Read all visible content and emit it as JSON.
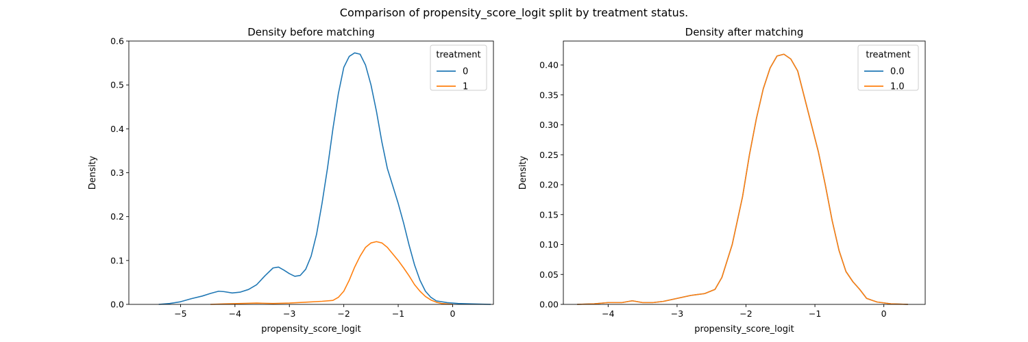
{
  "figure": {
    "suptitle": "Comparison of propensity_score_logit split by treatment status."
  },
  "colors": {
    "series0": "#1f77b4",
    "series1": "#ff7f0e"
  },
  "chart_data": [
    {
      "type": "line",
      "title": "Density before matching",
      "xlabel": "propensity_score_logit",
      "ylabel": "Density",
      "xlim": [
        -5.95,
        0.75
      ],
      "ylim": [
        0,
        0.6
      ],
      "xticks": [
        -5,
        -4,
        -3,
        -2,
        -1,
        0
      ],
      "xtick_labels": [
        "−5",
        "−4",
        "−3",
        "−2",
        "−1",
        "0"
      ],
      "yticks": [
        0.0,
        0.1,
        0.2,
        0.3,
        0.4,
        0.5,
        0.6
      ],
      "ytick_labels": [
        "0.0",
        "0.1",
        "0.2",
        "0.3",
        "0.4",
        "0.5",
        "0.6"
      ],
      "grid": false,
      "legend": {
        "title": "treatment",
        "position": "top-right"
      },
      "series": [
        {
          "name": "0",
          "points": [
            [
              -5.4,
              0.0
            ],
            [
              -5.2,
              0.002
            ],
            [
              -5.0,
              0.006
            ],
            [
              -4.8,
              0.013
            ],
            [
              -4.6,
              0.019
            ],
            [
              -4.45,
              0.025
            ],
            [
              -4.3,
              0.03
            ],
            [
              -4.2,
              0.029
            ],
            [
              -4.05,
              0.026
            ],
            [
              -3.9,
              0.028
            ],
            [
              -3.75,
              0.034
            ],
            [
              -3.6,
              0.045
            ],
            [
              -3.45,
              0.065
            ],
            [
              -3.3,
              0.083
            ],
            [
              -3.2,
              0.085
            ],
            [
              -3.1,
              0.078
            ],
            [
              -3.0,
              0.07
            ],
            [
              -2.9,
              0.064
            ],
            [
              -2.8,
              0.066
            ],
            [
              -2.7,
              0.08
            ],
            [
              -2.6,
              0.11
            ],
            [
              -2.5,
              0.16
            ],
            [
              -2.4,
              0.23
            ],
            [
              -2.3,
              0.31
            ],
            [
              -2.2,
              0.4
            ],
            [
              -2.1,
              0.48
            ],
            [
              -2.0,
              0.54
            ],
            [
              -1.9,
              0.565
            ],
            [
              -1.8,
              0.573
            ],
            [
              -1.7,
              0.57
            ],
            [
              -1.6,
              0.545
            ],
            [
              -1.5,
              0.5
            ],
            [
              -1.4,
              0.44
            ],
            [
              -1.3,
              0.37
            ],
            [
              -1.2,
              0.31
            ],
            [
              -1.1,
              0.27
            ],
            [
              -1.0,
              0.23
            ],
            [
              -0.9,
              0.185
            ],
            [
              -0.8,
              0.135
            ],
            [
              -0.7,
              0.09
            ],
            [
              -0.6,
              0.055
            ],
            [
              -0.5,
              0.03
            ],
            [
              -0.4,
              0.016
            ],
            [
              -0.3,
              0.008
            ],
            [
              -0.1,
              0.004
            ],
            [
              0.1,
              0.002
            ],
            [
              0.35,
              0.001
            ],
            [
              0.7,
              0.0
            ]
          ]
        },
        {
          "name": "1",
          "points": [
            [
              -4.45,
              0.0
            ],
            [
              -4.2,
              0.001
            ],
            [
              -3.9,
              0.002
            ],
            [
              -3.6,
              0.003
            ],
            [
              -3.3,
              0.002
            ],
            [
              -3.0,
              0.003
            ],
            [
              -2.7,
              0.005
            ],
            [
              -2.4,
              0.007
            ],
            [
              -2.2,
              0.009
            ],
            [
              -2.1,
              0.016
            ],
            [
              -2.0,
              0.03
            ],
            [
              -1.9,
              0.055
            ],
            [
              -1.8,
              0.085
            ],
            [
              -1.7,
              0.11
            ],
            [
              -1.6,
              0.13
            ],
            [
              -1.5,
              0.14
            ],
            [
              -1.4,
              0.143
            ],
            [
              -1.3,
              0.14
            ],
            [
              -1.2,
              0.13
            ],
            [
              -1.1,
              0.115
            ],
            [
              -1.0,
              0.1
            ],
            [
              -0.9,
              0.083
            ],
            [
              -0.8,
              0.065
            ],
            [
              -0.7,
              0.045
            ],
            [
              -0.6,
              0.03
            ],
            [
              -0.5,
              0.018
            ],
            [
              -0.4,
              0.01
            ],
            [
              -0.3,
              0.005
            ],
            [
              -0.2,
              0.002
            ],
            [
              0.0,
              0.0
            ]
          ]
        }
      ]
    },
    {
      "type": "line",
      "title": "Density after matching",
      "xlabel": "propensity_score_logit",
      "ylabel": "Density",
      "xlim": [
        -4.65,
        0.6
      ],
      "ylim": [
        0,
        0.44
      ],
      "xticks": [
        -4,
        -3,
        -2,
        -1,
        0
      ],
      "xtick_labels": [
        "−4",
        "−3",
        "−2",
        "−1",
        "0"
      ],
      "yticks": [
        0.0,
        0.05,
        0.1,
        0.15,
        0.2,
        0.25,
        0.3,
        0.35,
        0.4
      ],
      "ytick_labels": [
        "0.00",
        "0.05",
        "0.10",
        "0.15",
        "0.20",
        "0.25",
        "0.30",
        "0.35",
        "0.40"
      ],
      "grid": false,
      "legend": {
        "title": "treatment",
        "position": "top-right"
      },
      "series": [
        {
          "name": "0.0",
          "points": [
            [
              -4.45,
              0.0
            ],
            [
              -4.2,
              0.001
            ],
            [
              -4.0,
              0.003
            ],
            [
              -3.8,
              0.003
            ],
            [
              -3.65,
              0.006
            ],
            [
              -3.5,
              0.003
            ],
            [
              -3.35,
              0.003
            ],
            [
              -3.2,
              0.005
            ],
            [
              -3.0,
              0.01
            ],
            [
              -2.8,
              0.015
            ],
            [
              -2.6,
              0.018
            ],
            [
              -2.45,
              0.025
            ],
            [
              -2.35,
              0.045
            ],
            [
              -2.2,
              0.1
            ],
            [
              -2.05,
              0.18
            ],
            [
              -1.95,
              0.25
            ],
            [
              -1.85,
              0.31
            ],
            [
              -1.75,
              0.36
            ],
            [
              -1.65,
              0.395
            ],
            [
              -1.55,
              0.415
            ],
            [
              -1.45,
              0.418
            ],
            [
              -1.35,
              0.41
            ],
            [
              -1.25,
              0.39
            ],
            [
              -1.15,
              0.345
            ],
            [
              -1.05,
              0.3
            ],
            [
              -0.95,
              0.255
            ],
            [
              -0.85,
              0.2
            ],
            [
              -0.75,
              0.14
            ],
            [
              -0.65,
              0.09
            ],
            [
              -0.55,
              0.055
            ],
            [
              -0.45,
              0.038
            ],
            [
              -0.35,
              0.025
            ],
            [
              -0.25,
              0.01
            ],
            [
              -0.1,
              0.004
            ],
            [
              0.1,
              0.001
            ],
            [
              0.35,
              0.0
            ]
          ]
        },
        {
          "name": "1.0",
          "points": [
            [
              -4.45,
              0.0
            ],
            [
              -4.2,
              0.001
            ],
            [
              -4.0,
              0.003
            ],
            [
              -3.8,
              0.003
            ],
            [
              -3.65,
              0.006
            ],
            [
              -3.5,
              0.003
            ],
            [
              -3.35,
              0.003
            ],
            [
              -3.2,
              0.005
            ],
            [
              -3.0,
              0.01
            ],
            [
              -2.8,
              0.015
            ],
            [
              -2.6,
              0.018
            ],
            [
              -2.45,
              0.025
            ],
            [
              -2.35,
              0.045
            ],
            [
              -2.2,
              0.1
            ],
            [
              -2.05,
              0.18
            ],
            [
              -1.95,
              0.25
            ],
            [
              -1.85,
              0.31
            ],
            [
              -1.75,
              0.36
            ],
            [
              -1.65,
              0.395
            ],
            [
              -1.55,
              0.415
            ],
            [
              -1.45,
              0.418
            ],
            [
              -1.35,
              0.41
            ],
            [
              -1.25,
              0.39
            ],
            [
              -1.15,
              0.345
            ],
            [
              -1.05,
              0.3
            ],
            [
              -0.95,
              0.255
            ],
            [
              -0.85,
              0.2
            ],
            [
              -0.75,
              0.14
            ],
            [
              -0.65,
              0.09
            ],
            [
              -0.55,
              0.055
            ],
            [
              -0.45,
              0.038
            ],
            [
              -0.35,
              0.025
            ],
            [
              -0.25,
              0.01
            ],
            [
              -0.1,
              0.004
            ],
            [
              0.1,
              0.001
            ],
            [
              0.35,
              0.0
            ]
          ]
        }
      ]
    }
  ]
}
